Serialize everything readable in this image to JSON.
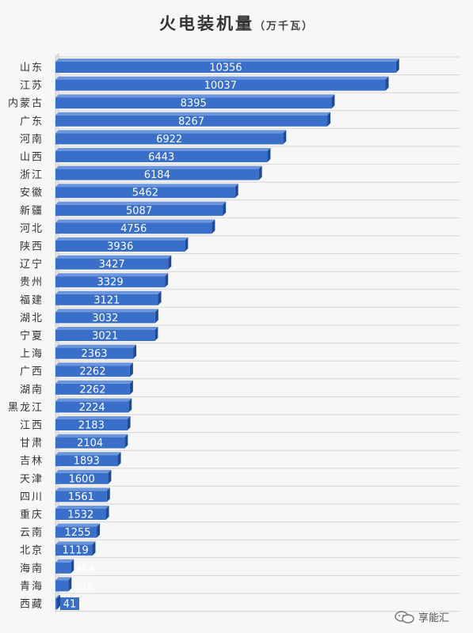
{
  "title": "火电装机量",
  "unit": "（万千瓦）",
  "watermark": "享能汇",
  "colors": {
    "bar_front": "#3a6fc9",
    "bar_top": "#6b96dd",
    "bar_side": "#1f4a96",
    "grid": "#d6d6d6",
    "label": "#ffffff",
    "tick": "#333333"
  },
  "chart_data": {
    "type": "bar",
    "orientation": "horizontal",
    "title": "火电装机量（万千瓦）",
    "xlabel": "",
    "ylabel": "",
    "grid": true,
    "categories": [
      "山东",
      "江苏",
      "内蒙古",
      "广东",
      "河南",
      "山西",
      "浙江",
      "安徽",
      "新疆",
      "河北",
      "陕西",
      "辽宁",
      "贵州",
      "福建",
      "湖北",
      "宁夏",
      "上海",
      "广西",
      "湖南",
      "黑龙江",
      "江西",
      "甘肃",
      "吉林",
      "天津",
      "四川",
      "重庆",
      "云南",
      "北京",
      "海南",
      "青海",
      "西藏"
    ],
    "values": [
      10356,
      10037,
      8395,
      8267,
      6922,
      6443,
      6184,
      5462,
      5087,
      4756,
      3936,
      3427,
      3329,
      3121,
      3032,
      3021,
      2363,
      2262,
      2262,
      2224,
      2183,
      2104,
      1893,
      1600,
      1561,
      1532,
      1255,
      1119,
      464,
      392,
      41
    ],
    "data_labels": [
      "10356",
      "10037",
      "8395",
      "8267",
      "6922",
      "6443",
      "6184",
      "5462",
      "5087",
      "4756",
      "3936",
      "3427",
      "3329",
      "3121",
      "3032",
      "3021",
      "2363",
      "2262",
      "2262",
      "2224",
      "2183",
      "2104",
      "1893",
      "1600",
      "1561",
      "1532",
      "1255",
      "1119",
      "464",
      "392",
      "41"
    ]
  }
}
